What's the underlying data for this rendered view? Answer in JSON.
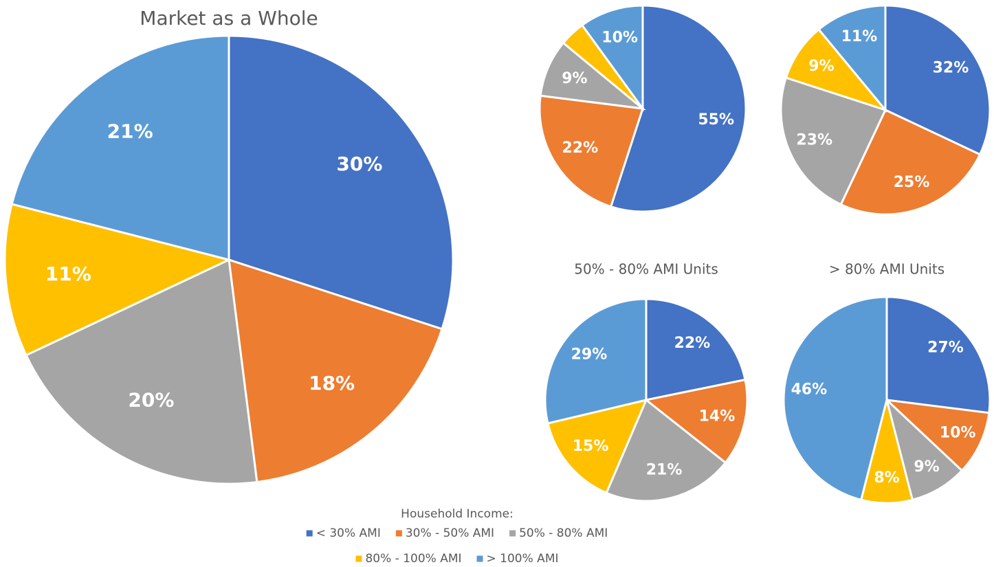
{
  "chart_data": [
    {
      "type": "pie",
      "title": "Market as a Whole",
      "categories": [
        "< 30% AMI",
        "30% - 50% AMI",
        "50% - 80% AMI",
        "80% - 100% AMI",
        "> 100% AMI"
      ],
      "values": [
        30,
        18,
        20,
        11,
        21
      ],
      "value_labels": [
        "30%",
        "18%",
        "20%",
        "11%",
        "21%"
      ],
      "colors": [
        "#4472c4",
        "#ed7d31",
        "#a5a5a5",
        "#ffc000",
        "#5b9bd5"
      ],
      "legend": {
        "title": "Household Income:"
      }
    },
    {
      "type": "pie",
      "categories": [
        "< 30% AMI",
        "30% - 50% AMI",
        "50% - 80% AMI",
        "80% - 100% AMI",
        "> 100% AMI"
      ],
      "values": [
        55,
        22,
        9,
        4,
        10
      ],
      "value_labels": [
        "55%",
        "22%",
        "9%",
        null,
        "10%"
      ],
      "colors": [
        "#4472c4",
        "#ed7d31",
        "#a5a5a5",
        "#ffc000",
        "#5b9bd5"
      ]
    },
    {
      "type": "pie",
      "categories": [
        "< 30% AMI",
        "30% - 50% AMI",
        "50% - 80% AMI",
        "80% - 100% AMI",
        "> 100% AMI"
      ],
      "values": [
        32,
        25,
        23,
        9,
        11
      ],
      "value_labels": [
        "32%",
        "25%",
        "23%",
        "9%",
        "11%"
      ],
      "colors": [
        "#4472c4",
        "#ed7d31",
        "#a5a5a5",
        "#ffc000",
        "#5b9bd5"
      ]
    },
    {
      "type": "pie",
      "title": "50% - 80% AMI Units",
      "categories": [
        "< 30% AMI",
        "30% - 50% AMI",
        "50% - 80% AMI",
        "80% - 100% AMI",
        "> 100% AMI"
      ],
      "values": [
        22,
        14,
        21,
        15,
        29
      ],
      "value_labels": [
        "22%",
        "14%",
        "21%",
        "15%",
        "29%"
      ],
      "colors": [
        "#4472c4",
        "#ed7d31",
        "#a5a5a5",
        "#ffc000",
        "#5b9bd5"
      ]
    },
    {
      "type": "pie",
      "title": "> 80% AMI Units",
      "categories": [
        "< 30% AMI",
        "30% - 50% AMI",
        "50% - 80% AMI",
        "80% - 100% AMI",
        "> 100% AMI"
      ],
      "values": [
        27,
        10,
        9,
        8,
        46
      ],
      "value_labels": [
        "27%",
        "10%",
        "9%",
        "8%",
        "46%"
      ],
      "colors": [
        "#4472c4",
        "#ed7d31",
        "#a5a5a5",
        "#ffc000",
        "#5b9bd5"
      ]
    }
  ]
}
